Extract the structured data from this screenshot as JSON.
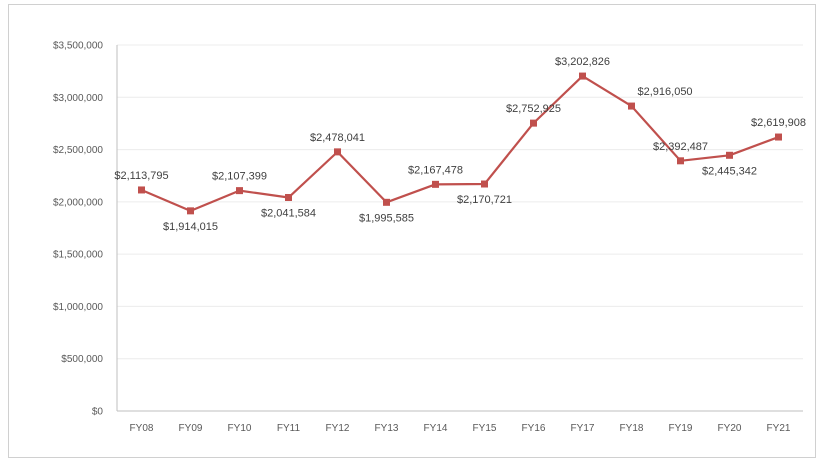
{
  "chart_data": {
    "type": "line",
    "title": "",
    "xlabel": "",
    "ylabel": "",
    "categories": [
      "FY08",
      "FY09",
      "FY10",
      "FY11",
      "FY12",
      "FY13",
      "FY14",
      "FY15",
      "FY16",
      "FY17",
      "FY18",
      "FY19",
      "FY20",
      "FY21"
    ],
    "series": [
      {
        "values": [
          2113795,
          1914015,
          2107399,
          2041584,
          2478041,
          1995585,
          2167478,
          2170721,
          2752925,
          3202826,
          2916050,
          2392487,
          2445342,
          2619908
        ],
        "labels": [
          "$2,113,795",
          "$1,914,015",
          "$2,107,399",
          "$2,041,584",
          "$2,478,041",
          "$1,995,585",
          "$2,167,478",
          "$2,170,721",
          "$2,752,925",
          "$3,202,826",
          "$2,916,050",
          "$2,392,487",
          "$2,445,342",
          "$2,619,908"
        ],
        "color": "#c0504d"
      }
    ],
    "ylim": [
      0,
      3500000
    ],
    "yticks": [
      0,
      500000,
      1000000,
      1500000,
      2000000,
      2500000,
      3000000,
      3500000
    ],
    "ytick_labels": [
      "$0",
      "$500,000",
      "$1,000,000",
      "$1,500,000",
      "$2,000,000",
      "$2,500,000",
      "$3,000,000",
      "$3,500,000"
    ],
    "grid": true,
    "legend": "none"
  }
}
